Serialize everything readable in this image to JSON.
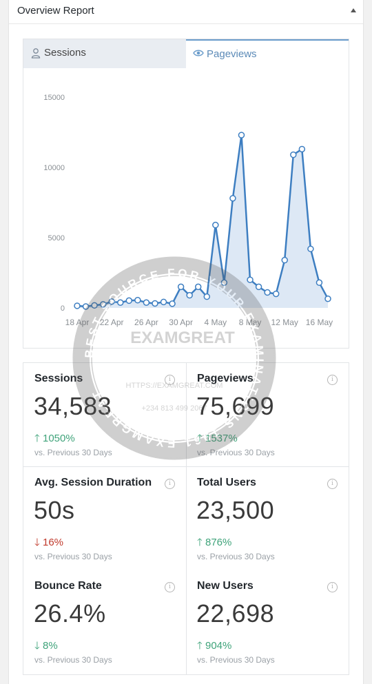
{
  "header": {
    "title": "Overview Report"
  },
  "tabs": [
    {
      "label": "Sessions",
      "icon": "user-icon",
      "active": false
    },
    {
      "label": "Pageviews",
      "icon": "eye-icon",
      "active": true
    }
  ],
  "chart_data": {
    "type": "area",
    "title": "",
    "xlabel": "",
    "ylabel": "",
    "ylim": [
      0,
      15000
    ],
    "yticks": [
      "0",
      "5000",
      "10000",
      "15000"
    ],
    "xticks": [
      "18 Apr",
      "22 Apr",
      "26 Apr",
      "30 Apr",
      "4 May",
      "8 May",
      "12 May",
      "16 May"
    ],
    "grid": false,
    "color": "#3d7ec1",
    "fill": "#dde8f5",
    "x": [
      "18 Apr",
      "19 Apr",
      "20 Apr",
      "21 Apr",
      "22 Apr",
      "23 Apr",
      "24 Apr",
      "25 Apr",
      "26 Apr",
      "27 Apr",
      "28 Apr",
      "29 Apr",
      "30 Apr",
      "1 May",
      "2 May",
      "3 May",
      "4 May",
      "5 May",
      "6 May",
      "7 May",
      "8 May",
      "9 May",
      "10 May",
      "11 May",
      "12 May",
      "13 May",
      "14 May",
      "15 May",
      "16 May",
      "17 May"
    ],
    "values": [
      150,
      100,
      180,
      250,
      450,
      380,
      520,
      550,
      380,
      320,
      420,
      300,
      1500,
      900,
      1500,
      800,
      5900,
      1800,
      7800,
      12300,
      2000,
      1500,
      1100,
      1000,
      3400,
      10900,
      11300,
      4200,
      1800,
      650
    ]
  },
  "stats": [
    {
      "title": "Sessions",
      "value": "34,583",
      "change": "1050%",
      "direction": "up",
      "compare": "vs. Previous 30 Days"
    },
    {
      "title": "Pageviews",
      "value": "75,699",
      "change": "1537%",
      "direction": "up",
      "compare": "vs. Previous 30 Days"
    },
    {
      "title": "Avg. Session Duration",
      "value": "50s",
      "change": "16%",
      "direction": "down",
      "compare": "vs. Previous 30 Days"
    },
    {
      "title": "Total Users",
      "value": "23,500",
      "change": "876%",
      "direction": "up",
      "compare": "vs. Previous 30 Days"
    },
    {
      "title": "Bounce Rate",
      "value": "26.4%",
      "change": "8%",
      "direction": "down",
      "compare": "vs. Previous 30 Days"
    },
    {
      "title": "New Users",
      "value": "22,698",
      "change": "904%",
      "direction": "up",
      "compare": "vs. Previous 30 Days"
    }
  ],
  "watermark": {
    "ring_text": "BEST SOURCE FOR YOUR EXAMINATIONS 1961 EXAMGREAT",
    "brand": "EXAMGREAT",
    "url": "HTTPS://EXAMGREAT.COM",
    "phone": "+234 813 499 2067"
  }
}
